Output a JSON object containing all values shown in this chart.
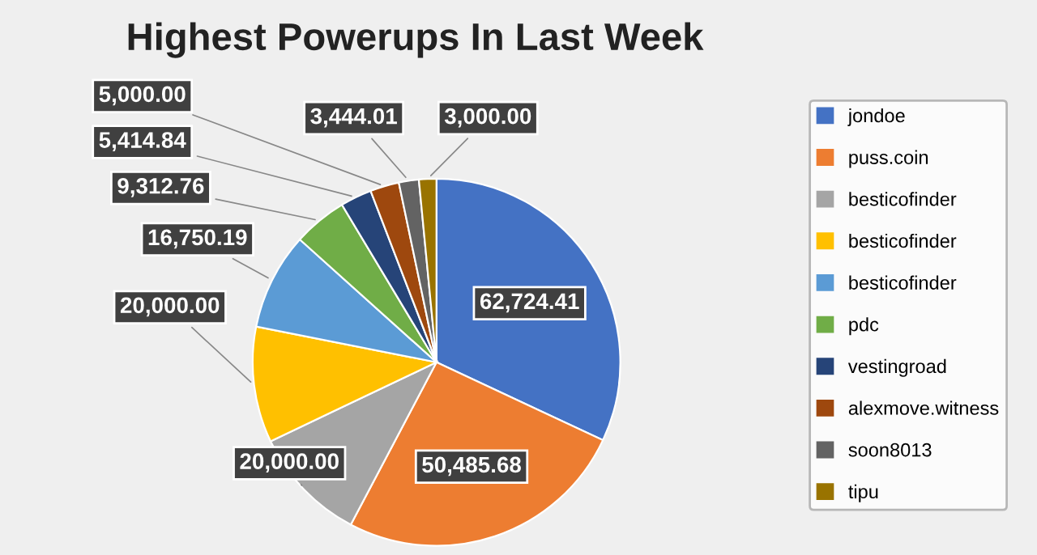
{
  "chart_data": {
    "type": "pie",
    "title": "Highest Powerups In Last Week",
    "categories": [
      "jondoe",
      "puss.coin",
      "besticofinder",
      "besticofinder",
      "besticofinder",
      "pdc",
      "vestingroad",
      "alexmove.witness",
      "soon8013",
      "tipu"
    ],
    "values": [
      62724.41,
      50485.68,
      20000.0,
      20000.0,
      16750.19,
      9312.76,
      5414.84,
      5000.0,
      3444.01,
      3000.0
    ],
    "value_labels": [
      "62,724.41",
      "50,485.68",
      "20,000.00",
      "20,000.00",
      "16,750.19",
      "9,312.76",
      "5,414.84",
      "5,000.00",
      "3,444.01",
      "3,000.00"
    ],
    "colors": [
      "#4472c4",
      "#ed7d31",
      "#a5a5a5",
      "#ffc000",
      "#5b9bd5",
      "#70ad47",
      "#264478",
      "#9e480e",
      "#636363",
      "#997300"
    ],
    "legend": "right"
  }
}
